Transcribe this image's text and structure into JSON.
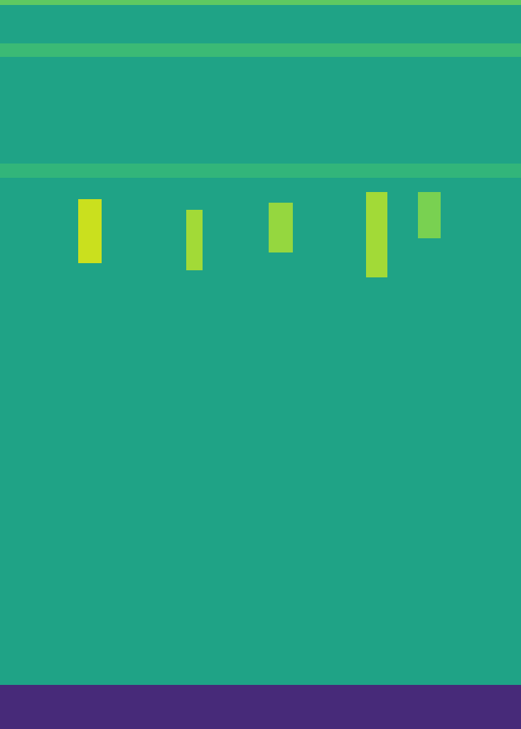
{
  "chart_data": {
    "type": "spectrogram",
    "xlim": [
      0,
      1
    ],
    "ylim": [
      0,
      1
    ],
    "tick_labels": false,
    "color_range": [
      0,
      1
    ],
    "background": 0.58,
    "bands": [
      {
        "y": [
          0,
          0.06
        ],
        "value": 0.12
      },
      {
        "y": [
          0.994,
          1
        ],
        "value": 0.75
      },
      {
        "y": [
          0.756,
          0.776
        ],
        "value": 0.66
      },
      {
        "y": [
          0.922,
          0.941
        ],
        "value": 0.68
      }
    ],
    "calls": [
      {
        "x": [
          0.15,
          0.194
        ],
        "y": [
          0.639,
          0.727
        ],
        "value": 0.92
      },
      {
        "x": [
          0.357,
          0.389
        ],
        "y": [
          0.629,
          0.712
        ],
        "value": 0.86
      },
      {
        "x": [
          0.516,
          0.562
        ],
        "y": [
          0.654,
          0.722
        ],
        "value": 0.84
      },
      {
        "x": [
          0.703,
          0.744
        ],
        "y": [
          0.62,
          0.737
        ],
        "value": 0.86
      },
      {
        "x": [
          0.802,
          0.846
        ],
        "y": [
          0.673,
          0.737
        ],
        "value": 0.8
      }
    ]
  }
}
